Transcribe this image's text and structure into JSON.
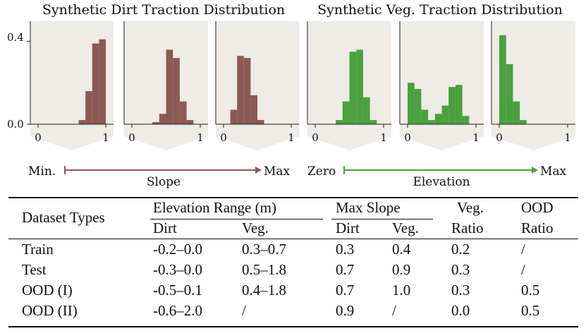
{
  "figure": {
    "dirt_title": "Synthetic Dirt Traction Distribution",
    "veg_title": "Synthetic Veg. Traction Distribution",
    "y_ticks": [
      "0.4",
      "0.0"
    ],
    "x_tick_min": "0",
    "x_tick_max": "1",
    "dirt_axis": {
      "left": "Min.",
      "right": "Max",
      "label": "Slope"
    },
    "veg_axis": {
      "left": "Zero",
      "right": "Max",
      "label": "Elevation"
    },
    "colors": {
      "dirt_bar": "#8a5a53",
      "veg_bar": "#4aa13e",
      "panel_bg": "#efebe6",
      "dirt_arrow": "#8a5a53",
      "veg_arrow": "#4aa13e"
    }
  },
  "chart_data": [
    {
      "type": "bar",
      "title": "Synthetic Dirt Traction Distribution — panel 1",
      "x": [
        0.05,
        0.15,
        0.25,
        0.35,
        0.45,
        0.55,
        0.65,
        0.75,
        0.85,
        0.95
      ],
      "values": [
        0,
        0,
        0,
        0,
        0,
        0,
        0.02,
        0.16,
        0.39,
        0.41
      ],
      "xlim": [
        0,
        1
      ],
      "ylim": [
        0,
        0.45
      ]
    },
    {
      "type": "bar",
      "title": "Synthetic Dirt Traction Distribution — panel 2",
      "x": [
        0.05,
        0.15,
        0.25,
        0.35,
        0.45,
        0.55,
        0.65,
        0.75,
        0.85,
        0.95
      ],
      "values": [
        0,
        0,
        0,
        0.01,
        0.05,
        0.36,
        0.32,
        0.11,
        0.02,
        0
      ],
      "xlim": [
        0,
        1
      ],
      "ylim": [
        0,
        0.45
      ]
    },
    {
      "type": "bar",
      "title": "Synthetic Dirt Traction Distribution — panel 3",
      "x": [
        0.05,
        0.15,
        0.25,
        0.35,
        0.45,
        0.55,
        0.65,
        0.75,
        0.85,
        0.95
      ],
      "values": [
        0,
        0.07,
        0.33,
        0.32,
        0.14,
        0.02,
        0,
        0,
        0,
        0
      ],
      "xlim": [
        0,
        1
      ],
      "ylim": [
        0,
        0.45
      ]
    },
    {
      "type": "bar",
      "title": "Synthetic Veg. Traction Distribution — panel 1",
      "x": [
        0.05,
        0.15,
        0.25,
        0.35,
        0.45,
        0.55,
        0.65,
        0.75,
        0.85,
        0.95
      ],
      "values": [
        0,
        0,
        0,
        0.02,
        0.11,
        0.35,
        0.36,
        0.13,
        0.02,
        0
      ],
      "xlim": [
        0,
        1
      ],
      "ylim": [
        0,
        0.45
      ]
    },
    {
      "type": "bar",
      "title": "Synthetic Veg. Traction Distribution — panel 2",
      "x": [
        0.05,
        0.15,
        0.25,
        0.35,
        0.45,
        0.55,
        0.65,
        0.75,
        0.85,
        0.95
      ],
      "values": [
        0.2,
        0.17,
        0.07,
        0.02,
        0.05,
        0.09,
        0.18,
        0.19,
        0.04,
        0
      ],
      "xlim": [
        0,
        1
      ],
      "ylim": [
        0,
        0.45
      ]
    },
    {
      "type": "bar",
      "title": "Synthetic Veg. Traction Distribution — panel 3",
      "x": [
        0.05,
        0.15,
        0.25,
        0.35,
        0.45,
        0.55,
        0.65,
        0.75,
        0.85,
        0.95
      ],
      "values": [
        0.43,
        0.29,
        0.11,
        0.02,
        0,
        0,
        0,
        0,
        0,
        0
      ],
      "xlim": [
        0,
        1
      ],
      "ylim": [
        0,
        0.45
      ]
    }
  ],
  "table": {
    "head": {
      "dataset_types": "Dataset Types",
      "elev_range": "Elevation Range (m)",
      "max_slope": "Max Slope",
      "veg_ratio_1": "Veg.",
      "veg_ratio_2": "Ratio",
      "ood_ratio_1": "OOD",
      "ood_ratio_2": "Ratio",
      "dirt": "Dirt",
      "veg": "Veg.",
      "dirt2": "Dirt",
      "veg2": "Veg."
    },
    "rows": [
      [
        "Train",
        "-0.2–0.0",
        "0.3–0.7",
        "0.3",
        "0.4",
        "0.2",
        "/"
      ],
      [
        "Test",
        "-0.3–0.0",
        "0.5–1.8",
        "0.7",
        "0.9",
        "0.3",
        "/"
      ],
      [
        "OOD (I)",
        "-0.5–0.1",
        "0.4–1.8",
        "0.7",
        "1.0",
        "0.3",
        "0.5"
      ],
      [
        "OOD (II)",
        "-0.6–2.0",
        "/",
        "0.9",
        "/",
        "0.0",
        "0.5"
      ]
    ]
  }
}
